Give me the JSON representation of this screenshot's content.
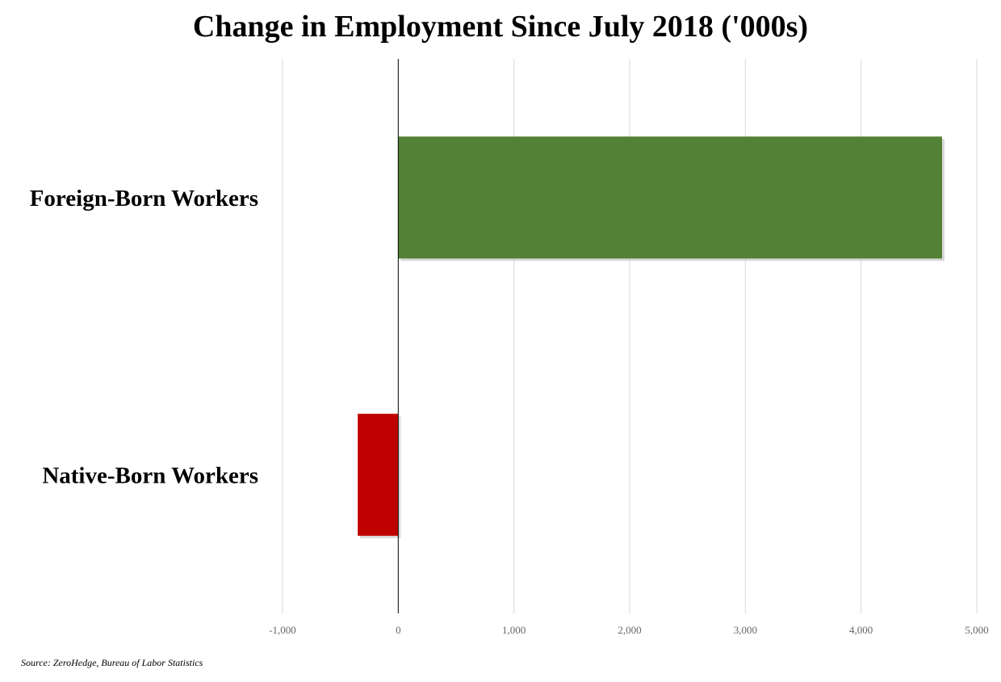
{
  "chart_data": {
    "type": "bar",
    "orientation": "horizontal",
    "title": "Change in Employment Since July 2018 ('000s)",
    "categories": [
      "Foreign-Born Workers",
      "Native-Born Workers"
    ],
    "values": [
      4700,
      -350
    ],
    "bar_colors": [
      "#538135",
      "#c00000"
    ],
    "xlim": [
      -1000,
      5000
    ],
    "xticks": [
      -1000,
      0,
      1000,
      2000,
      3000,
      4000,
      5000
    ],
    "xtick_labels": [
      "-1,000",
      "0",
      "1,000",
      "2,000",
      "3,000",
      "4,000",
      "5,000"
    ],
    "grid": true,
    "legend": "none",
    "source": "Source: ZeroHedge, Bureau of Labor Statistics"
  }
}
